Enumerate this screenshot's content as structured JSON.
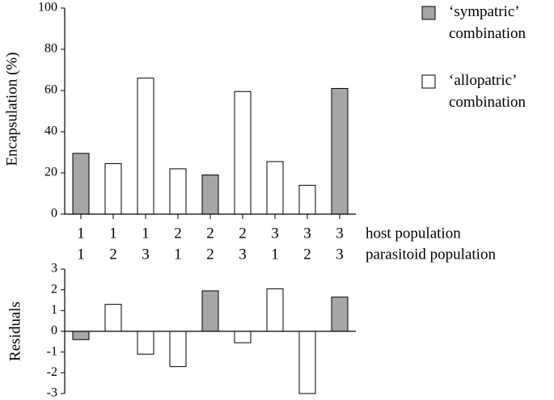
{
  "chart_data": [
    {
      "type": "bar",
      "y_label": "Encapsulation (%)",
      "category_rows": [
        {
          "label": "host population",
          "values": [
            "1",
            "1",
            "1",
            "2",
            "2",
            "2",
            "3",
            "3",
            "3"
          ]
        },
        {
          "label": "parasitoid population",
          "values": [
            "1",
            "2",
            "3",
            "1",
            "2",
            "3",
            "1",
            "2",
            "3"
          ]
        }
      ],
      "series": [
        {
          "name": "‘sympatric’ combination",
          "color": "#a6a6a6",
          "values": [
            29.5,
            null,
            null,
            null,
            19,
            null,
            null,
            null,
            61
          ]
        },
        {
          "name": "‘allopatric’ combination",
          "color": "#ffffff",
          "values": [
            null,
            24.5,
            66,
            22,
            null,
            59.5,
            25.5,
            14,
            null
          ]
        }
      ],
      "ylim": [
        0,
        100
      ],
      "yticks": [
        0,
        20,
        40,
        60,
        80,
        100
      ]
    },
    {
      "type": "bar",
      "y_label": "Residuals",
      "series": [
        {
          "color": "#a6a6a6",
          "values": [
            -0.4,
            null,
            null,
            null,
            1.95,
            null,
            null,
            null,
            1.65
          ]
        },
        {
          "color": "#ffffff",
          "values": [
            null,
            1.3,
            -1.1,
            -1.7,
            null,
            -0.55,
            2.05,
            -3.0,
            null
          ]
        }
      ],
      "ylim": [
        -3,
        3
      ],
      "yticks": [
        -3,
        -2,
        -1,
        0,
        1,
        2,
        3
      ]
    }
  ]
}
